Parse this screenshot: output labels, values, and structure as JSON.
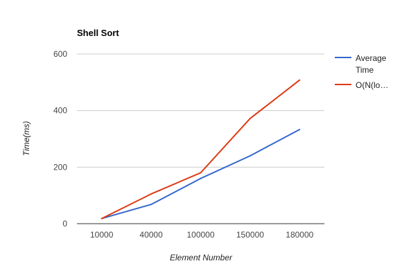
{
  "chart_data": {
    "type": "line",
    "title": "Shell Sort",
    "xlabel": "Element Number",
    "ylabel": "Time(ms)",
    "categories": [
      "10000",
      "40000",
      "100000",
      "150000",
      "180000"
    ],
    "ylim": [
      0,
      600
    ],
    "yticks": [
      0,
      200,
      400,
      600
    ],
    "grid": true,
    "legend_position": "right",
    "series": [
      {
        "name": "Average Time",
        "legend_lines": [
          "Average",
          "Time"
        ],
        "color": "#3366cc",
        "values": [
          18,
          68,
          160,
          240,
          333
        ]
      },
      {
        "name": "O(N(lo…",
        "legend_lines": [
          "O(N(lo…"
        ],
        "color": "#dc3912",
        "values": [
          18,
          105,
          180,
          372,
          508
        ]
      }
    ]
  }
}
